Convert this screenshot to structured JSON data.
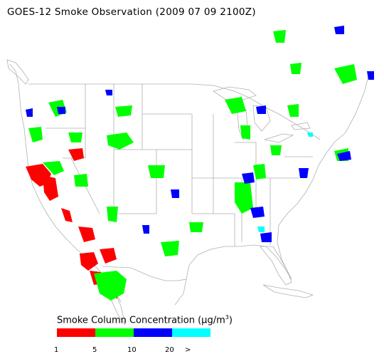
{
  "title": "GOES-12 Smoke Observation (2009 07 09  2100Z)",
  "legend": {
    "title_prefix": "Smoke Column Concentration (",
    "title_mu": "μ",
    "title_unit_rest": "g/m",
    "title_sup": "3",
    "title_suffix": ")",
    "ticks": [
      "1",
      "5",
      "10",
      "20",
      ">"
    ],
    "bins": [
      {
        "color": "#ff0000"
      },
      {
        "color": "#00ff00"
      },
      {
        "color": "#0000ff"
      },
      {
        "color": "#00ffff"
      }
    ]
  },
  "colors": {
    "low": "#ff0000",
    "medium": "#00ff00",
    "high": "#0000ff",
    "very_high": "#00ffff",
    "basemap_lines": "#b0b0b0"
  }
}
